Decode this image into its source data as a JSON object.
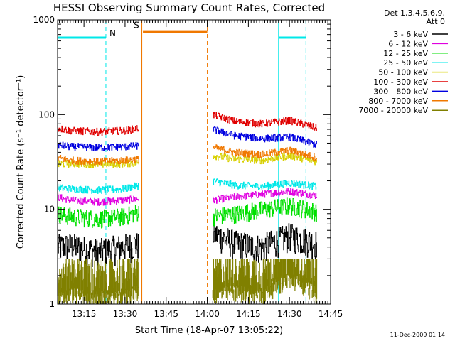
{
  "chart_data": {
    "type": "line",
    "title": "HESSI Observing Summary Count Rates, Corrected",
    "xlabel": "Start Time (18-Apr-07 13:05:22)",
    "ylabel": "Corrected Count Rate (s⁻¹ detector⁻¹)",
    "y_scale": "log",
    "ylim": [
      1,
      1000
    ],
    "xlim": [
      "13:05:22",
      "14:45:00"
    ],
    "x_ticks": [
      "13:15",
      "13:30",
      "13:45",
      "14:00",
      "14:15",
      "14:30",
      "14:45"
    ],
    "y_ticks": [
      "1",
      "10",
      "100",
      "1000"
    ],
    "grid": false,
    "legend_position": "top-right",
    "legend_header": [
      "Det 1,3,4,5,6,9,",
      "Att 0"
    ],
    "series": [
      {
        "name": "3 - 6 keV",
        "color": "#000000",
        "segments": [
          {
            "x": [
              "13:05:22",
              "13:10",
              "13:20",
              "13:30",
              "13:35"
            ],
            "values": [
              4.0,
              4.2,
              3.6,
              4.1,
              4.3
            ]
          },
          {
            "x": [
              "14:02",
              "14:10",
              "14:20",
              "14:30",
              "14:40"
            ],
            "values": [
              5.6,
              4.4,
              4.0,
              5.3,
              4.4
            ]
          }
        ]
      },
      {
        "name": "6 - 12 keV",
        "color": "#e000e0",
        "segments": [
          {
            "x": [
              "13:05:22",
              "13:10",
              "13:20",
              "13:30",
              "13:35"
            ],
            "values": [
              13.5,
              12.5,
              12.0,
              12.5,
              13.0
            ]
          },
          {
            "x": [
              "14:02",
              "14:10",
              "14:20",
              "14:30",
              "14:40"
            ],
            "values": [
              12.5,
              13.5,
              14.5,
              15.5,
              14.0
            ]
          }
        ]
      },
      {
        "name": "12 - 25 keV",
        "color": "#00e000",
        "segments": [
          {
            "x": [
              "13:05:22",
              "13:10",
              "13:20",
              "13:30",
              "13:35"
            ],
            "values": [
              9.0,
              8.5,
              8.0,
              8.5,
              9.5
            ]
          },
          {
            "x": [
              "14:02",
              "14:10",
              "14:20",
              "14:30",
              "14:40"
            ],
            "values": [
              8.5,
              9.0,
              10.0,
              11.0,
              9.5
            ]
          }
        ]
      },
      {
        "name": "25 - 50 keV",
        "color": "#00e8e8",
        "segments": [
          {
            "x": [
              "13:05:22",
              "13:10",
              "13:20",
              "13:30",
              "13:35"
            ],
            "values": [
              17.0,
              16.5,
              16.0,
              16.5,
              18.0
            ]
          },
          {
            "x": [
              "14:02",
              "14:10",
              "14:20",
              "14:30",
              "14:40"
            ],
            "values": [
              20.0,
              18.0,
              17.5,
              19.0,
              17.5
            ]
          }
        ]
      },
      {
        "name": "50 - 100 keV",
        "color": "#d8d000",
        "segments": [
          {
            "x": [
              "13:05:22",
              "13:10",
              "13:20",
              "13:30",
              "13:35"
            ],
            "values": [
              30.0,
              30.5,
              30.0,
              30.5,
              31.0
            ]
          },
          {
            "x": [
              "14:02",
              "14:10",
              "14:20",
              "14:30",
              "14:40"
            ],
            "values": [
              37.0,
              34.0,
              33.0,
              37.0,
              32.0
            ]
          }
        ]
      },
      {
        "name": "100 - 300 keV",
        "color": "#e00000",
        "segments": [
          {
            "x": [
              "13:05:22",
              "13:10",
              "13:20",
              "13:30",
              "13:35"
            ],
            "values": [
              72.0,
              68.0,
              66.0,
              68.0,
              72.0
            ]
          },
          {
            "x": [
              "14:02",
              "14:10",
              "14:20",
              "14:30",
              "14:40"
            ],
            "values": [
              100.0,
              85.0,
              80.0,
              87.0,
              72.0
            ]
          }
        ]
      },
      {
        "name": "300 - 800 keV",
        "color": "#0000e0",
        "segments": [
          {
            "x": [
              "13:05:22",
              "13:10",
              "13:20",
              "13:30",
              "13:35"
            ],
            "values": [
              48.0,
              46.0,
              45.0,
              46.0,
              47.0
            ]
          },
          {
            "x": [
              "14:02",
              "14:10",
              "14:20",
              "14:30",
              "14:40"
            ],
            "values": [
              70.0,
              60.0,
              56.0,
              58.0,
              48.0
            ]
          }
        ]
      },
      {
        "name": "800 - 7000 keV",
        "color": "#f07800",
        "segments": [
          {
            "x": [
              "13:05:22",
              "13:10",
              "13:20",
              "13:30",
              "13:35"
            ],
            "values": [
              35.0,
              33.0,
              32.0,
              33.0,
              34.0
            ]
          },
          {
            "x": [
              "14:02",
              "14:10",
              "14:20",
              "14:30",
              "14:40"
            ],
            "values": [
              45.0,
              40.0,
              38.0,
              42.0,
              35.0
            ]
          }
        ]
      },
      {
        "name": "7000 - 20000 keV",
        "color": "#808000",
        "segments": [
          {
            "x": [
              "13:05:22",
              "13:10",
              "13:20",
              "13:30",
              "13:35"
            ],
            "values": [
              1.5,
              1.8,
              1.6,
              1.7,
              1.9
            ]
          },
          {
            "x": [
              "14:02",
              "14:10",
              "14:20",
              "14:30",
              "14:40"
            ],
            "values": [
              1.8,
              1.9,
              1.7,
              2.6,
              1.8
            ]
          }
        ]
      }
    ],
    "intervals": [
      {
        "label": "N",
        "color": "#00e8e8",
        "start": "13:05:22",
        "end": "13:23:00",
        "level": 650,
        "style": "dashed-end"
      },
      {
        "label": "S",
        "color": "#f07800",
        "start": "13:36:00",
        "end": "14:00:00",
        "level": 750,
        "style": "dashed-end"
      },
      {
        "label": "",
        "color": "#00e8e8",
        "start": "14:26:00",
        "end": "14:36:00",
        "level": 650,
        "style": "dashed-end"
      }
    ],
    "footer_stamp": "11-Dec-2009 01:14"
  }
}
